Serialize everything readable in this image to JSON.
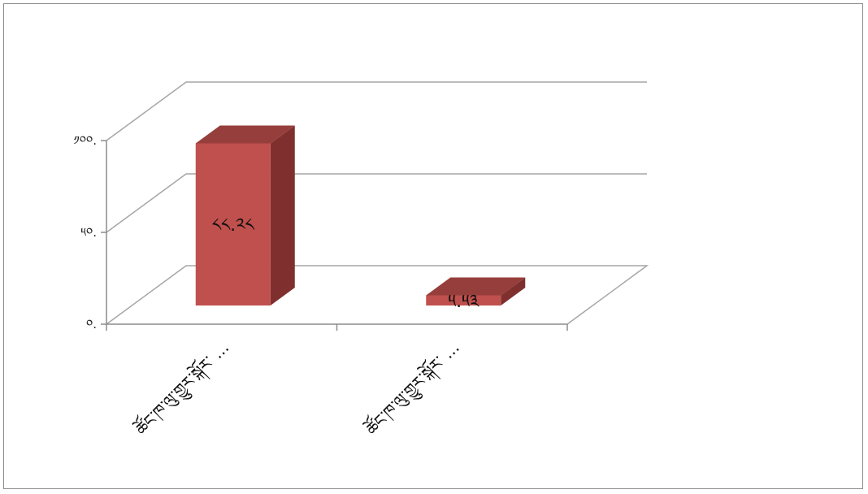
{
  "chart_data": {
    "type": "bar",
    "style": "3d-column",
    "categories": [
      "ཚོང་ཁ་ལུ་གྱུར་སྐོར་ ...",
      "ཚོང་ཁ་ལུ་གྱུར་སྐོར་ ..."
    ],
    "values": [
      88.28,
      5.53
    ],
    "data_labels": [
      "༨༨.༢༨",
      "༥.༥༣"
    ],
    "y_ticks": [
      {
        "value": 0,
        "label": "༠."
      },
      {
        "value": 50,
        "label": "༥༠."
      },
      {
        "value": 100,
        "label": "༡༠༠."
      }
    ],
    "ylim": [
      0,
      100
    ],
    "grid": true,
    "legend": "none",
    "colors": {
      "bar_front": "#c0504d",
      "bar_side": "#7f302e",
      "bar_top": "#963e3b",
      "grid": "#a6a6a6",
      "axis": "#8c8c8c"
    }
  }
}
